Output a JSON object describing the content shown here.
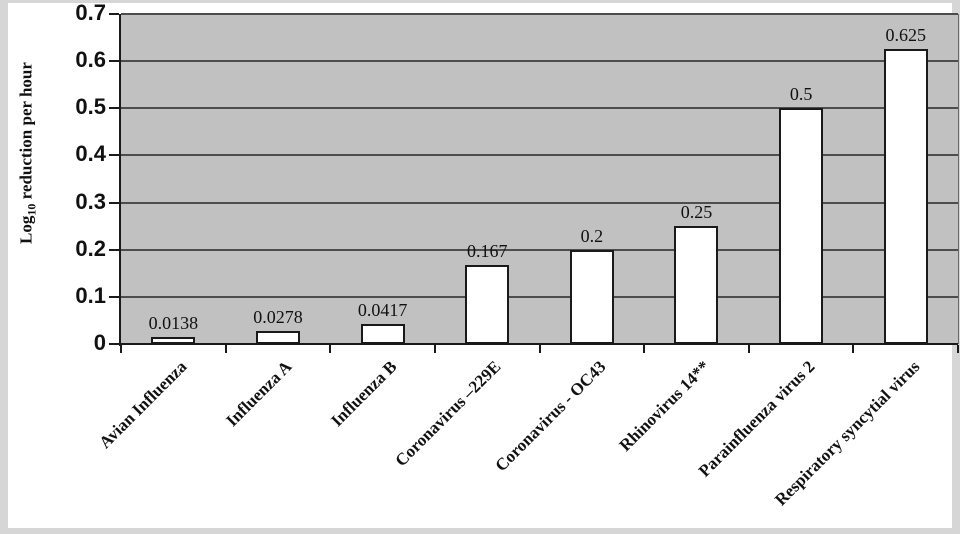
{
  "chart_data": {
    "type": "bar",
    "title": "",
    "xlabel": "",
    "ylabel": "Log10 reduction per hour",
    "ylabel_parts": {
      "prefix": "Log",
      "sub": "10",
      "rest": " reduction per hour"
    },
    "categories": [
      "Avian Influenza",
      "Influenza A",
      "Influenza B",
      "Coronavirus –229E",
      "Coronavirus - OC43",
      "Rhinovirus 14**",
      "Parainfluenza virus 2",
      "Respiratory syncytial virus"
    ],
    "values": [
      0.0138,
      0.0278,
      0.0417,
      0.167,
      0.2,
      0.25,
      0.5,
      0.625
    ],
    "value_labels": [
      "0.0138",
      "0.0278",
      "0.0417",
      "0.167",
      "0.2",
      "0.25",
      "0.5",
      "0.625"
    ],
    "ylim": [
      0,
      0.7
    ],
    "ytick_step": 0.1,
    "ytick_labels": [
      "0",
      "0.1",
      "0.2",
      "0.3",
      "0.4",
      "0.5",
      "0.6",
      "0.7"
    ],
    "grid": "horizontal-only",
    "legend": "none",
    "xlabel_rotation_deg": 45,
    "colors": {
      "plot_background": "#c1c1c1",
      "bar_fill": "#ffffff",
      "bar_border": "#1a1a1a",
      "gridline": "#4d4d4d",
      "axis": "#1a1a1a",
      "text": "#111111",
      "outer_border": "#d6d6d6",
      "panel_background": "#ffffff"
    }
  }
}
